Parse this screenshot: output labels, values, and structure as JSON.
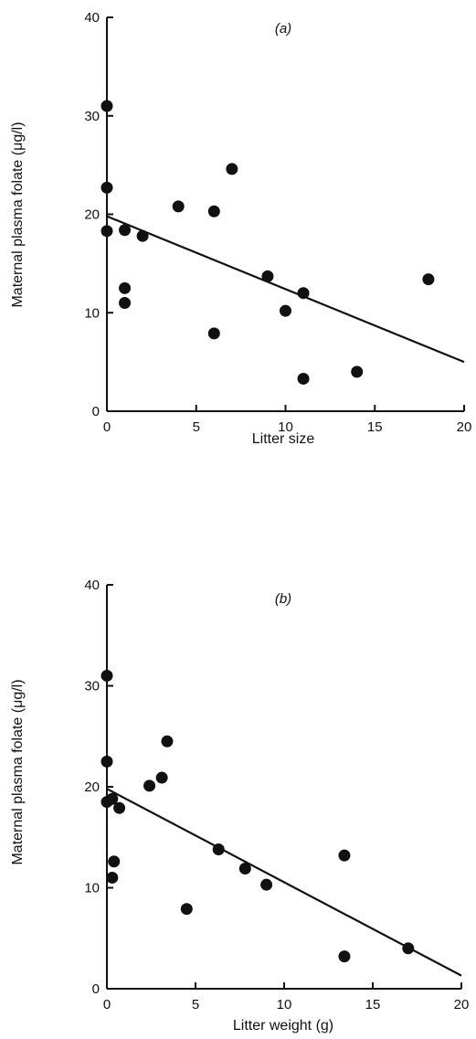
{
  "chart_data": [
    {
      "type": "scatter",
      "panel_label": "(a)",
      "xlabel": "Litter size",
      "ylabel": "Maternal plasma folate (μg/l)",
      "xlim": [
        0,
        20
      ],
      "ylim": [
        0,
        40
      ],
      "x_ticks": [
        0,
        5,
        10,
        15,
        20
      ],
      "y_ticks": [
        0,
        10,
        20,
        30,
        40
      ],
      "x_tick_labels": [
        "0",
        "5",
        "10",
        "15",
        "20"
      ],
      "y_tick_labels": [
        "0",
        "10",
        "20",
        "30",
        "40"
      ],
      "grid": false,
      "series": [
        {
          "points": [
            {
              "x": 0,
              "y": 31
            },
            {
              "x": 0,
              "y": 22.7
            },
            {
              "x": 0,
              "y": 18.3
            },
            {
              "x": 1,
              "y": 18.4
            },
            {
              "x": 1,
              "y": 12.5
            },
            {
              "x": 1,
              "y": 11
            },
            {
              "x": 2,
              "y": 17.8
            },
            {
              "x": 4,
              "y": 20.8
            },
            {
              "x": 6,
              "y": 20.3
            },
            {
              "x": 6,
              "y": 7.9
            },
            {
              "x": 7,
              "y": 24.6
            },
            {
              "x": 9,
              "y": 13.7
            },
            {
              "x": 10,
              "y": 10.2
            },
            {
              "x": 11,
              "y": 12
            },
            {
              "x": 11,
              "y": 3.3
            },
            {
              "x": 14,
              "y": 4
            },
            {
              "x": 18,
              "y": 13.4
            }
          ]
        }
      ],
      "regression_line": {
        "x": [
          0,
          20
        ],
        "y": [
          19.8,
          5
        ]
      }
    },
    {
      "type": "scatter",
      "panel_label": "(b)",
      "xlabel": "Litter weight (g)",
      "ylabel": "Maternal plasma folate (μg/l)",
      "xlim": [
        0,
        20
      ],
      "ylim": [
        0,
        40
      ],
      "x_ticks": [
        0,
        5,
        10,
        15,
        20
      ],
      "y_ticks": [
        0,
        10,
        20,
        30,
        40
      ],
      "x_tick_labels": [
        "0",
        "5",
        "10",
        "15",
        "20"
      ],
      "y_tick_labels": [
        "0",
        "10",
        "20",
        "30",
        "40"
      ],
      "grid": false,
      "series": [
        {
          "points": [
            {
              "x": 0,
              "y": 31
            },
            {
              "x": 0,
              "y": 22.5
            },
            {
              "x": 0,
              "y": 18.5
            },
            {
              "x": 0.3,
              "y": 18.8
            },
            {
              "x": 0.7,
              "y": 17.9
            },
            {
              "x": 0.4,
              "y": 12.6
            },
            {
              "x": 0.3,
              "y": 11
            },
            {
              "x": 2.4,
              "y": 20.1
            },
            {
              "x": 3.1,
              "y": 20.9
            },
            {
              "x": 3.4,
              "y": 24.5
            },
            {
              "x": 4.5,
              "y": 7.9
            },
            {
              "x": 6.3,
              "y": 13.8
            },
            {
              "x": 7.8,
              "y": 11.9
            },
            {
              "x": 9,
              "y": 10.3
            },
            {
              "x": 13.4,
              "y": 13.2
            },
            {
              "x": 13.4,
              "y": 3.2
            },
            {
              "x": 17,
              "y": 4
            }
          ]
        }
      ],
      "regression_line": {
        "x": [
          0,
          20
        ],
        "y": [
          19.8,
          1.3
        ]
      }
    }
  ]
}
